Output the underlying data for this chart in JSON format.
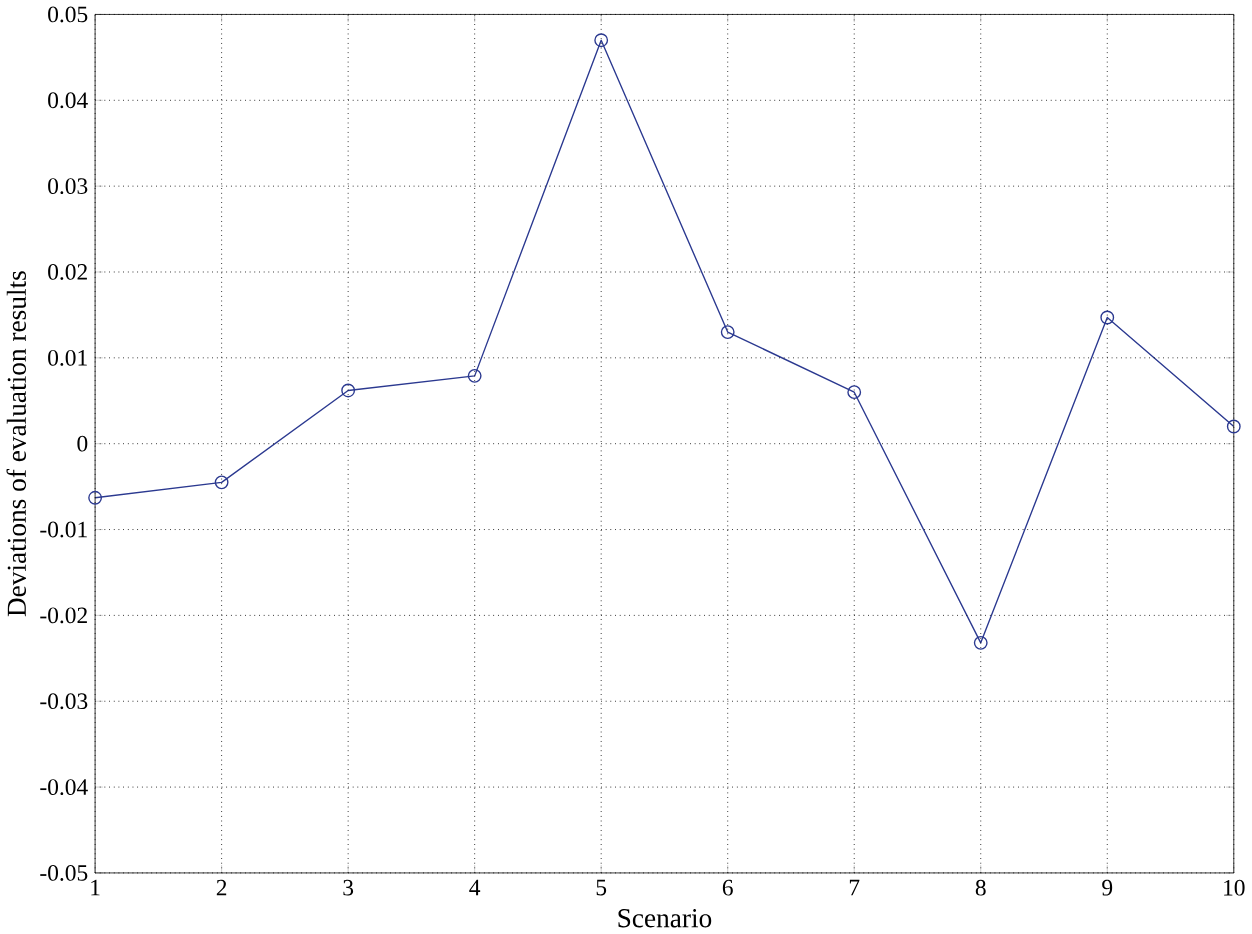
{
  "chart_data": {
    "type": "line",
    "xlabel": "Scenario",
    "ylabel": "Deviations of evaluation results",
    "x": [
      1,
      2,
      3,
      4,
      5,
      6,
      7,
      8,
      9,
      10
    ],
    "series": [
      {
        "color": "#2b3990",
        "values": [
          -0.0063,
          -0.0045,
          0.0062,
          0.0079,
          0.047,
          0.013,
          0.006,
          -0.0232,
          0.0147,
          0.002
        ]
      }
    ],
    "xlim": [
      1,
      10
    ],
    "xticks": [
      1,
      2,
      3,
      4,
      5,
      6,
      7,
      8,
      9,
      10
    ],
    "ylim": [
      -0.05,
      0.05
    ],
    "yticks": [
      -0.05,
      -0.04,
      -0.03,
      -0.02,
      -0.01,
      0,
      0.01,
      0.02,
      0.03,
      0.04,
      0.05
    ],
    "grid": true,
    "marker": "circle",
    "line_style": "solid"
  }
}
